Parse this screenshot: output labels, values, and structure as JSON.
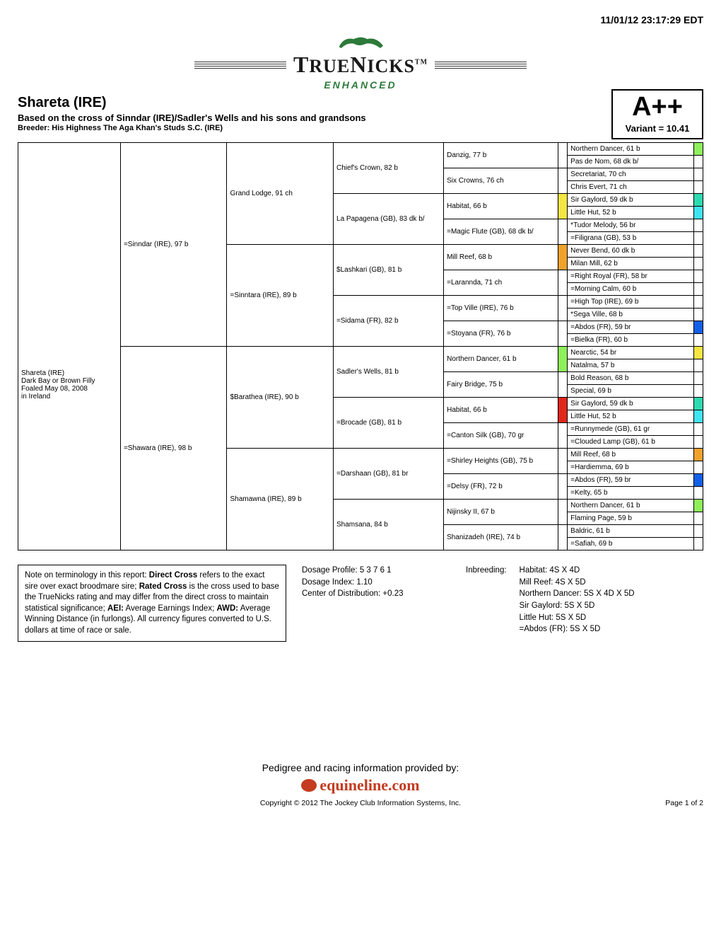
{
  "timestamp": "11/01/12 23:17:29 EDT",
  "logo": {
    "name": "TRUENICKS",
    "tm": "TM",
    "enhanced": "ENHANCED"
  },
  "header": {
    "horse_name": "Shareta (IRE)",
    "based_on": "Based on the cross of Sinndar (IRE)/Sadler's Wells and his sons and grandsons",
    "breeder": "Breeder: His Highness The Aga Khan's Studs S.C. (IRE)",
    "grade": "A++",
    "variant": "Variant = 10.41"
  },
  "subject": {
    "line1": "Shareta (IRE)",
    "line2": "Dark Bay or Brown Filly",
    "line3": "Foaled May 08, 2008",
    "line4": "in Ireland"
  },
  "colors": {
    "green": "#8ef05a",
    "yellow": "#f5e642",
    "teal": "#2ddab0",
    "cyan": "#3fe4f0",
    "red": "#e0271b",
    "blue": "#1160e8",
    "orange": "#f0a22d",
    "none": ""
  },
  "gen1": [
    "=Sinndar (IRE), 97 b",
    "=Shawara (IRE), 98 b"
  ],
  "gen2": [
    "Grand Lodge, 91 ch",
    "=Sinntara (IRE), 89 b",
    "$Barathea (IRE), 90 b",
    "Shamawna (IRE), 89 b"
  ],
  "gen3": [
    "Chief's Crown, 82 b",
    "La Papagena (GB), 83 dk b/",
    "$Lashkari (GB), 81 b",
    "=Sidama (FR), 82 b",
    "Sadler's Wells, 81 b",
    "=Brocade (GB), 81 b",
    "=Darshaan (GB), 81 br",
    "Shamsana, 84 b"
  ],
  "gen4": [
    "Danzig, 77 b",
    "Six Crowns, 76 ch",
    "Habitat, 66 b",
    "=Magic Flute (GB), 68 dk b/",
    "Mill Reef, 68 b",
    "=Larannda, 71 ch",
    "=Top Ville (IRE), 76 b",
    "=Stoyana (FR), 76 b",
    "Northern Dancer, 61 b",
    "Fairy Bridge, 75 b",
    "Habitat, 66 b",
    "=Canton Silk (GB), 70 gr",
    "=Shirley Heights (GB), 75 b",
    "=Delsy (FR), 72 b",
    "Nijinsky II, 67 b",
    "Shanizadeh (IRE), 74 b"
  ],
  "gen5": [
    {
      "n": "Northern Dancer, 61 b",
      "c": "green"
    },
    {
      "n": "Pas de Nom, 68 dk b/",
      "c": "none"
    },
    {
      "n": "Secretariat, 70 ch",
      "c": "none"
    },
    {
      "n": "Chris Evert, 71 ch",
      "c": "none"
    },
    {
      "n": "Sir Gaylord, 59 dk b",
      "c": "teal"
    },
    {
      "n": "Little Hut, 52 b",
      "c": "cyan"
    },
    {
      "n": "*Tudor Melody, 56 br",
      "c": "none"
    },
    {
      "n": "=Filigrana (GB), 53 b",
      "c": "none"
    },
    {
      "n": "Never Bend, 60 dk b",
      "c": "none"
    },
    {
      "n": "Milan Mill, 62 b",
      "c": "none"
    },
    {
      "n": "=Right Royal (FR), 58 br",
      "c": "none"
    },
    {
      "n": "=Morning Calm, 60 b",
      "c": "none"
    },
    {
      "n": "=High Top (IRE), 69 b",
      "c": "none"
    },
    {
      "n": "*Sega Ville, 68 b",
      "c": "none"
    },
    {
      "n": "=Abdos (FR), 59 br",
      "c": "blue"
    },
    {
      "n": "=Bielka (FR), 60 b",
      "c": "none"
    },
    {
      "n": "Nearctic, 54 br",
      "c": "yellow"
    },
    {
      "n": "Natalma, 57 b",
      "c": "none"
    },
    {
      "n": "Bold Reason, 68 b",
      "c": "none"
    },
    {
      "n": "Special, 69 b",
      "c": "none"
    },
    {
      "n": "Sir Gaylord, 59 dk b",
      "c": "teal"
    },
    {
      "n": "Little Hut, 52 b",
      "c": "cyan"
    },
    {
      "n": "=Runnymede (GB), 61 gr",
      "c": "none"
    },
    {
      "n": "=Clouded Lamp (GB), 61 b",
      "c": "none"
    },
    {
      "n": "Mill Reef, 68 b",
      "c": "orange"
    },
    {
      "n": "=Hardiemma, 69 b",
      "c": "none"
    },
    {
      "n": "=Abdos (FR), 59 br",
      "c": "blue"
    },
    {
      "n": "=Kelty, 65 b",
      "c": "none"
    },
    {
      "n": "Northern Dancer, 61 b",
      "c": "green"
    },
    {
      "n": "Flaming Page, 59 b",
      "c": "none"
    },
    {
      "n": "Baldric, 61 b",
      "c": "none"
    },
    {
      "n": "=Safiah, 69 b",
      "c": "none"
    }
  ],
  "gen4_colors": [
    "none",
    "none",
    "yellow",
    "none",
    "orange",
    "none",
    "none",
    "none",
    "green",
    "none",
    "red",
    "none",
    "none",
    "none",
    "none",
    "none"
  ],
  "note_box": "Note on terminology in this report: Direct Cross refers to the exact sire over exact broodmare sire; Rated Cross is the cross used to base the TrueNicks rating and may differ from the direct cross to maintain statistical significance; AEI: Average Earnings Index; AWD: Average Winning Distance (in furlongs). All currency figures converted to U.S. dollars at time of race or sale.",
  "note_bold_phrases": [
    "Direct Cross",
    "Rated Cross",
    "AEI:",
    "AWD:"
  ],
  "dosage": {
    "profile": "Dosage Profile: 5 3 7 6 1",
    "index": "Dosage Index: 1.10",
    "center": "Center of Distribution: +0.23"
  },
  "inbreeding": {
    "label": "Inbreeding:",
    "items": [
      "Habitat: 4S X 4D",
      "Mill Reef: 4S X 5D",
      "Northern Dancer: 5S X 4D X 5D",
      "Sir Gaylord: 5S X 5D",
      "Little Hut: 5S X 5D",
      "=Abdos (FR): 5S X 5D"
    ]
  },
  "footer": {
    "provided": "Pedigree and racing information provided by:",
    "equineline": "equineline.com",
    "copyright": "Copyright © 2012 The Jockey Club Information Systems, Inc.",
    "page": "Page 1 of 2"
  }
}
